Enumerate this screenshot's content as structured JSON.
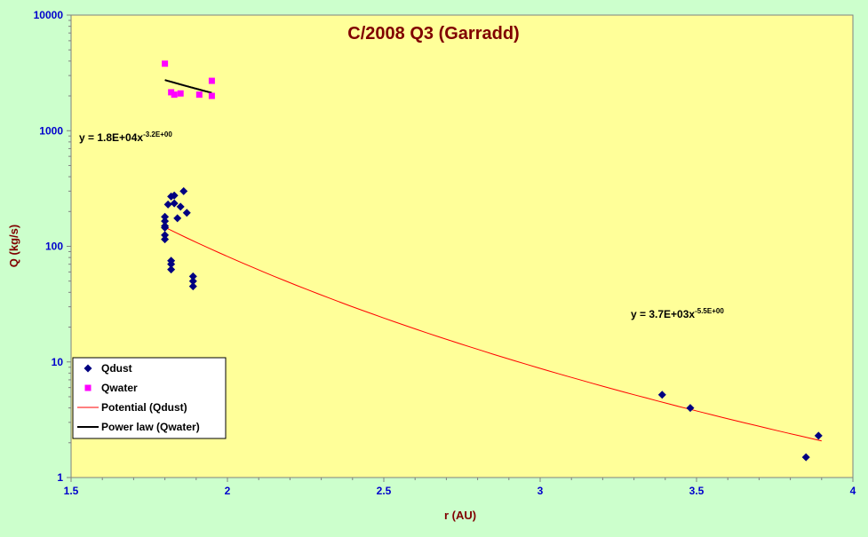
{
  "chart_data": {
    "type": "scatter",
    "title": "C/2008 Q3 (Garradd)",
    "xlabel": "r (AU)",
    "ylabel": "Q (kg/s)",
    "xlim": [
      1.5,
      4
    ],
    "ylim": [
      1,
      10000
    ],
    "y_scale": "log",
    "x_ticks": [
      "1.5",
      "2",
      "2.5",
      "3",
      "3.5",
      "4"
    ],
    "x_tick_values": [
      1.5,
      2,
      2.5,
      3,
      3.5,
      4
    ],
    "y_ticks": [
      "1",
      "10",
      "100",
      "1000",
      "10000"
    ],
    "y_tick_values": [
      1,
      10,
      100,
      1000,
      10000
    ],
    "grid": false,
    "legend_position": "bottom-left",
    "colors": {
      "page_background": "#ccffcc",
      "plot_background": "#ffff99",
      "title": "#800000",
      "axis_labels": "#800000",
      "tick_labels": "#0000cc",
      "qdust": "#000080",
      "qwater": "#ff00ff",
      "fit_dust": "#ff0000",
      "fit_water": "#000000"
    },
    "series": [
      {
        "name": "Qdust",
        "marker": "diamond",
        "color": "#000080",
        "points": [
          [
            1.8,
            180
          ],
          [
            1.8,
            165
          ],
          [
            1.8,
            150
          ],
          [
            1.8,
            145
          ],
          [
            1.8,
            125
          ],
          [
            1.8,
            115
          ],
          [
            1.81,
            230
          ],
          [
            1.82,
            270
          ],
          [
            1.82,
            75
          ],
          [
            1.82,
            70
          ],
          [
            1.82,
            63
          ],
          [
            1.83,
            235
          ],
          [
            1.83,
            275
          ],
          [
            1.84,
            175
          ],
          [
            1.85,
            220
          ],
          [
            1.86,
            300
          ],
          [
            1.87,
            195
          ],
          [
            1.89,
            55
          ],
          [
            1.89,
            50
          ],
          [
            1.89,
            45
          ],
          [
            3.39,
            5.2
          ],
          [
            3.48,
            4.0
          ],
          [
            3.85,
            1.5
          ],
          [
            3.89,
            2.3
          ]
        ]
      },
      {
        "name": "Qwater",
        "marker": "square",
        "color": "#ff00ff",
        "points": [
          [
            1.8,
            3800
          ],
          [
            1.82,
            2150
          ],
          [
            1.83,
            2050
          ],
          [
            1.85,
            2100
          ],
          [
            1.91,
            2050
          ],
          [
            1.95,
            2700
          ],
          [
            1.95,
            2000
          ]
        ]
      }
    ],
    "fits": [
      {
        "name": "Potential (Qdust)",
        "color": "#ff0000",
        "coefficient": 3700,
        "exponent": -5.5,
        "x_range": [
          1.8,
          3.9
        ],
        "equation_main": "y = 3.7E+03x",
        "equation_exp": "-5.5E+00"
      },
      {
        "name": "Power law (Qwater)",
        "color": "#000000",
        "coefficient": 18000,
        "exponent": -3.2,
        "x_range": [
          1.8,
          1.95
        ],
        "equation_main": "y = 1.8E+04x",
        "equation_exp": "-3.2E+00"
      }
    ],
    "legend": [
      {
        "label": "Qdust",
        "marker": "diamond",
        "color": "#000080"
      },
      {
        "label": "Qwater",
        "marker": "square",
        "color": "#ff00ff"
      },
      {
        "label": "Potential (Qdust)",
        "marker": "line-thin",
        "color": "#ff0000"
      },
      {
        "label": "Power law (Qwater)",
        "marker": "line-thick",
        "color": "#000000"
      }
    ]
  }
}
